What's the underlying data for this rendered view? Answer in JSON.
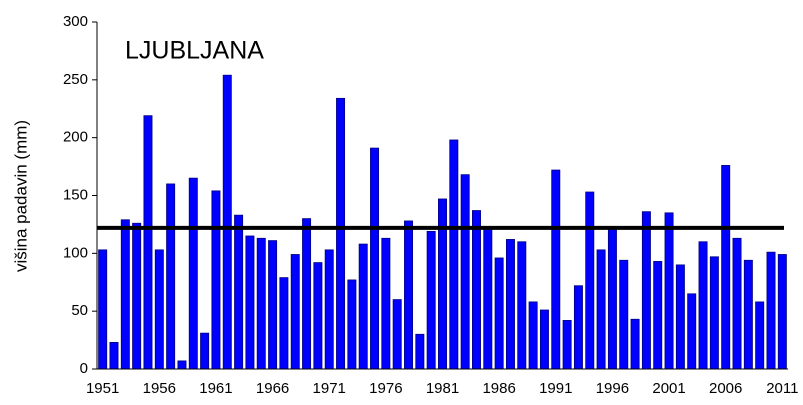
{
  "chart_data": {
    "type": "bar",
    "title": "LJUBLJANA",
    "y_label": "višina padavin (mm)",
    "categories": [
      "1951",
      null,
      null,
      null,
      null,
      "1956",
      null,
      null,
      null,
      null,
      "1961",
      null,
      null,
      null,
      null,
      "1966",
      null,
      null,
      null,
      null,
      "1971",
      null,
      null,
      null,
      null,
      "1976",
      null,
      null,
      null,
      null,
      "1981",
      null,
      null,
      null,
      null,
      "1986",
      null,
      null,
      null,
      null,
      "1991",
      null,
      null,
      null,
      null,
      "1996",
      null,
      null,
      null,
      null,
      "2001",
      null,
      null,
      null,
      null,
      "2006",
      null,
      null,
      null,
      null,
      "2011"
    ],
    "values": [
      103,
      23,
      129,
      126,
      219,
      103,
      160,
      7,
      165,
      31,
      154,
      254,
      133,
      115,
      113,
      111,
      79,
      99,
      130,
      92,
      103,
      234,
      77,
      108,
      191,
      113,
      60,
      128,
      30,
      119,
      147,
      198,
      168,
      137,
      122,
      96,
      112,
      110,
      58,
      51,
      172,
      42,
      72,
      153,
      103,
      122,
      94,
      43,
      136,
      93,
      135,
      90,
      65,
      110,
      97,
      176,
      113,
      94,
      58,
      101,
      99
    ],
    "color": "#0000ff",
    "mean": 122,
    "mean_color": "#000000",
    "ylim": [
      0,
      300
    ],
    "yticks": [
      0,
      50,
      100,
      150,
      200,
      250,
      300
    ],
    "grid": false
  }
}
